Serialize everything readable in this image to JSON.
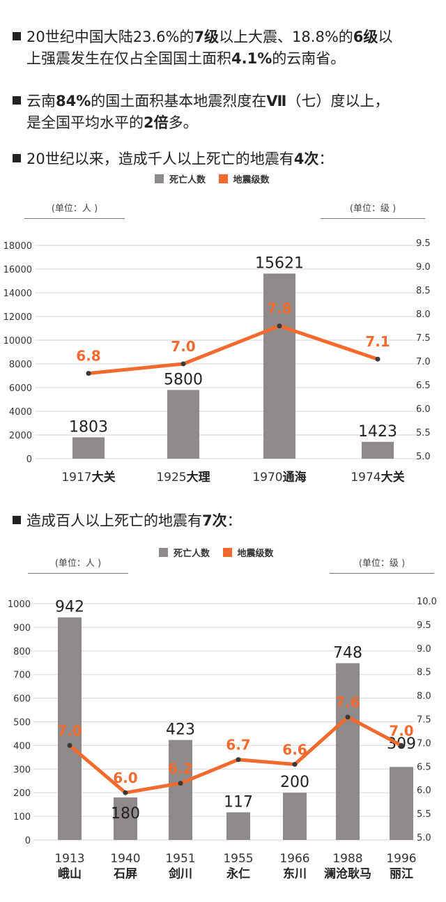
{
  "bullets": [
    {
      "line1_parts": [
        "20世纪中国大陆23.6%的",
        "7级",
        "以上大震、18.8%的",
        "6级",
        "以"
      ],
      "line2_parts": [
        "上强震发生在仅占全国国土面积",
        "4.1%",
        "的云南省。"
      ]
    },
    {
      "line1_parts": [
        "云南",
        "84%",
        "的国土面积基本地震烈度在",
        "Ⅶ",
        "（七）度以上，"
      ],
      "line2_parts": [
        "是全国平均水平的",
        "2倍",
        "多。"
      ]
    },
    {
      "line1_parts": [
        "20世纪以来，造成千人以上死亡的地震有",
        "4次",
        "："
      ]
    },
    {
      "line1_parts": [
        "造成百人以上死亡的地震有",
        "7次",
        "："
      ]
    }
  ],
  "colors": {
    "bar": "#8f8a8a",
    "line": "#f26a2e",
    "marker": "#3a3a3a",
    "grid": "#dddddd",
    "label": "#222222"
  },
  "legend": {
    "deaths": "死亡人数",
    "magnitude": "地震级数"
  },
  "units": {
    "left": "(单位：人 )",
    "right": "(单位：级 )"
  },
  "chart_data": [
    {
      "type": "bar+line",
      "title": "20世纪以来，造成千人以上死亡的地震有4次",
      "categories": [
        "1917大关",
        "1925大理",
        "1970通海",
        "1974大关"
      ],
      "category_years": [
        "1917",
        "1925",
        "1970",
        "1974"
      ],
      "category_places": [
        "大关",
        "大理",
        "通海",
        "大关"
      ],
      "series": [
        {
          "name": "死亡人数",
          "type": "bar",
          "axis": "left",
          "values": [
            1803,
            5800,
            15621,
            1423
          ]
        },
        {
          "name": "地震级数",
          "type": "line",
          "axis": "right",
          "values": [
            6.8,
            7.0,
            7.8,
            7.1
          ]
        }
      ],
      "ylabel_left": "(单位：人 )",
      "ylabel_right": "(单位：级 )",
      "ylim_left": [
        0,
        18000
      ],
      "yticks_left": [
        0,
        2000,
        4000,
        6000,
        8000,
        10000,
        12000,
        14000,
        16000,
        18000
      ],
      "ylim_right": [
        5.0,
        9.5
      ],
      "yticks_right": [
        "5.0",
        "5.5",
        "6.0",
        "6.5",
        "7.0",
        "7.5",
        "8.0",
        "8.5",
        "9.0",
        "9.5"
      ],
      "line_labels": [
        "6.8",
        "7.0",
        "7.8",
        "7.1"
      ],
      "grid": true,
      "legend_position": "top"
    },
    {
      "type": "bar+line",
      "title": "造成百人以上死亡的地震有7次",
      "categories": [
        "1913峨山",
        "1940石屏",
        "1951剑川",
        "1955永仁",
        "1966东川",
        "1988澜沧耿马",
        "1996丽江"
      ],
      "category_years": [
        "1913",
        "1940",
        "1951",
        "1955",
        "1966",
        "1988",
        "1996"
      ],
      "category_places": [
        "峨山",
        "石屏",
        "剑川",
        "永仁",
        "东川",
        "澜沧耿马",
        "丽江"
      ],
      "series": [
        {
          "name": "死亡人数",
          "type": "bar",
          "axis": "left",
          "values": [
            942,
            180,
            423,
            117,
            200,
            748,
            309
          ]
        },
        {
          "name": "地震级数",
          "type": "line",
          "axis": "right",
          "values": [
            7.0,
            6.0,
            6.2,
            6.7,
            6.6,
            7.6,
            7.0
          ]
        }
      ],
      "ylabel_left": "(单位：人 )",
      "ylabel_right": "(单位：级 )",
      "ylim_left": [
        0,
        1000
      ],
      "yticks_left": [
        0,
        100,
        200,
        300,
        400,
        500,
        600,
        700,
        800,
        900,
        1000
      ],
      "ylim_right": [
        5.0,
        10.0
      ],
      "yticks_right": [
        "5.0",
        "5.5",
        "6.0",
        "6.5",
        "7.0",
        "7.5",
        "8.0",
        "8.5",
        "9.0",
        "9.5",
        "10.0"
      ],
      "line_labels": [
        "7.0",
        "6.0",
        "6.2",
        "6.7",
        "6.6",
        "7.6",
        "7.0"
      ],
      "grid": true,
      "legend_position": "top"
    }
  ]
}
